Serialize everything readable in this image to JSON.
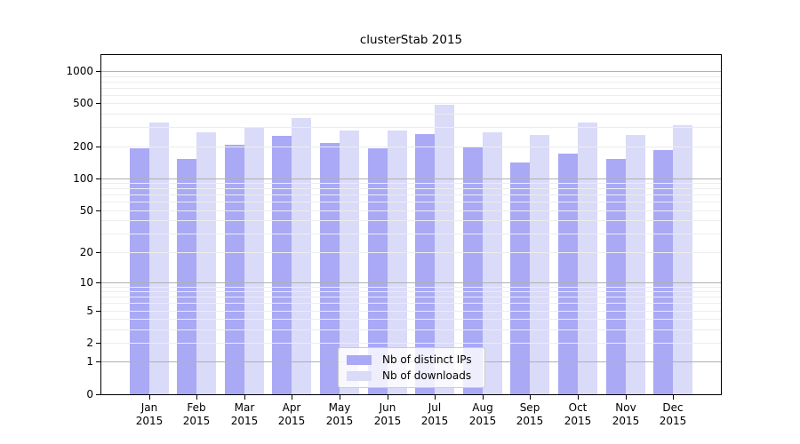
{
  "title": "clusterStab 2015",
  "legend": {
    "items": [
      {
        "label": "Nb of distinct IPs",
        "color": "#a9a9f5"
      },
      {
        "label": "Nb of downloads",
        "color": "#dadaf9"
      }
    ]
  },
  "colors": {
    "background": "#ffffff",
    "axis": "#000000",
    "grid_minor": "#ededed",
    "grid_major": "#b0b0b0",
    "series_dark": "#a9a9f5",
    "series_light": "#dadaf9",
    "legend_border": "#cccccc"
  },
  "chart_data": {
    "type": "bar",
    "title": "clusterStab 2015",
    "categories": [
      "Jan",
      "Feb",
      "Mar",
      "Apr",
      "May",
      "Jun",
      "Jul",
      "Aug",
      "Sep",
      "Oct",
      "Nov",
      "Dec"
    ],
    "year_label": "2015",
    "series": [
      {
        "name": "Nb of distinct IPs",
        "color": "#a9a9f5",
        "values": [
          190,
          153,
          207,
          248,
          213,
          192,
          260,
          195,
          142,
          172,
          153,
          185
        ]
      },
      {
        "name": "Nb of downloads",
        "color": "#dadaf9",
        "values": [
          330,
          268,
          296,
          367,
          281,
          278,
          483,
          271,
          253,
          330,
          255,
          313
        ]
      }
    ],
    "y_ticks": [
      0,
      1,
      2,
      5,
      10,
      20,
      50,
      100,
      200,
      500,
      1000
    ],
    "y_scale": "log1p",
    "ylim": [
      0,
      1430
    ],
    "xlabel": "",
    "ylabel": "",
    "grid": "horizontal minor + major (powers of 10), drawn over bars",
    "legend_position": "bottom-center"
  }
}
